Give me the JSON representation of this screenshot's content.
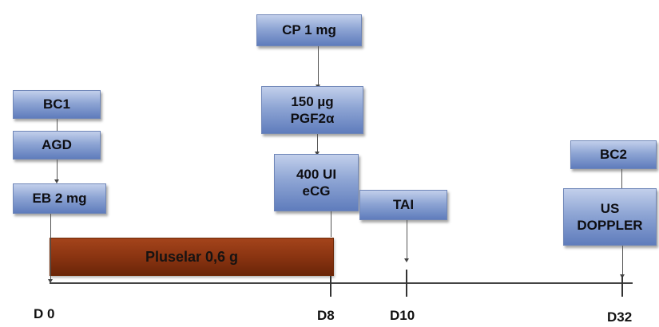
{
  "protocol": {
    "boxes": {
      "bc1": "BC1",
      "agd": "AGD",
      "eb": "EB 2 mg",
      "cp": "CP 1 mg",
      "pgf": "150 µg\nPGF2α",
      "ecg": "400 UI\neCG",
      "tai": "TAI",
      "bc2": "BC2",
      "us": "US\nDOPPLER"
    },
    "implant_label": "Pluselar 0,6 g",
    "days": {
      "d0": "D 0",
      "d8": "D8",
      "d10": "D10",
      "d32": "D32"
    }
  }
}
